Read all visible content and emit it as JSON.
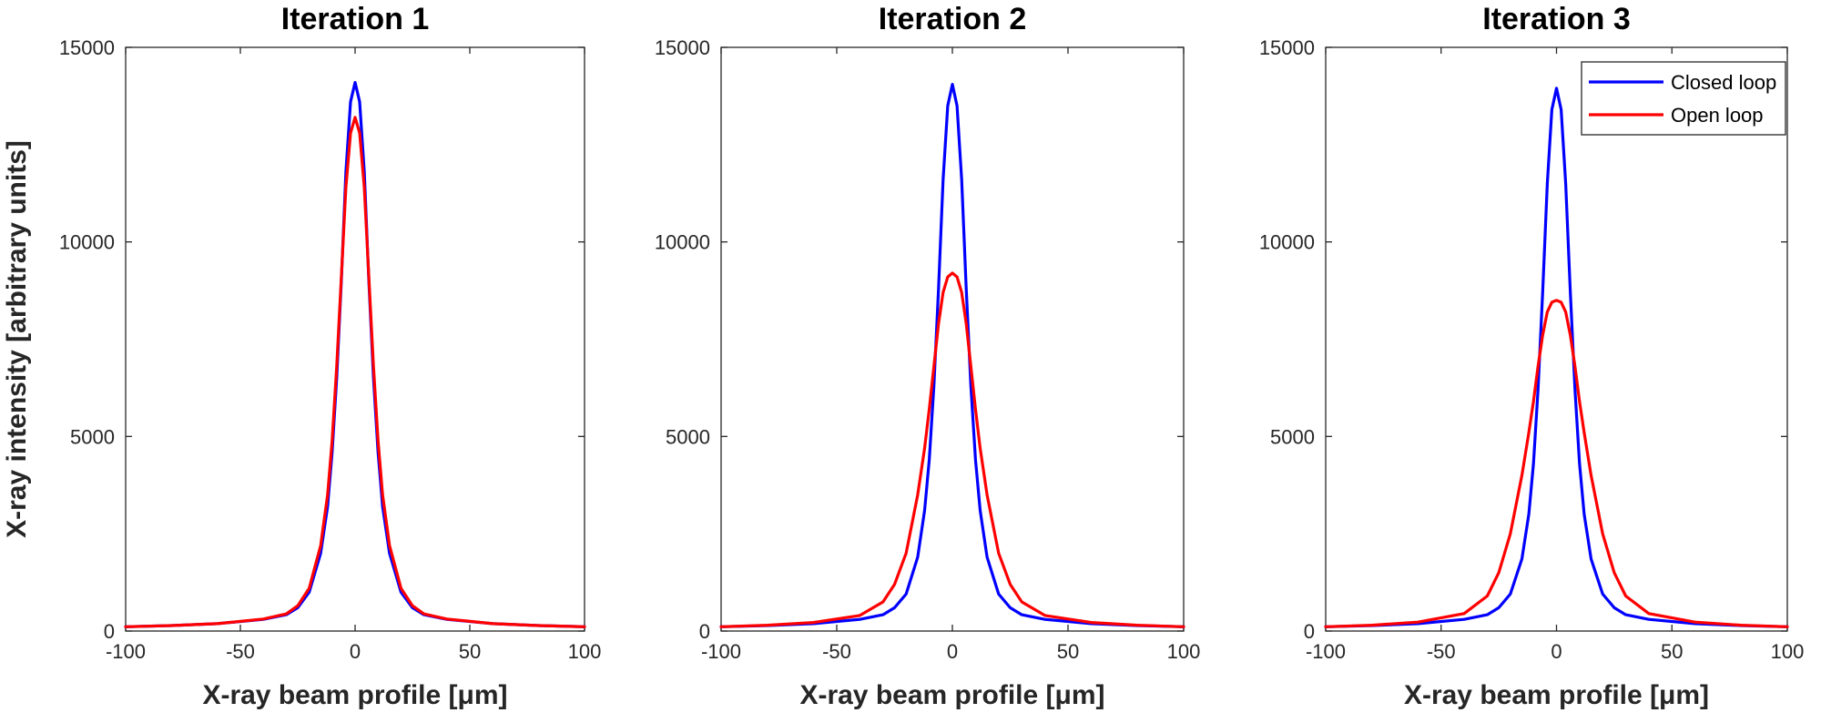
{
  "chart_data": [
    {
      "type": "line",
      "title": "Iteration 1",
      "xlabel": "X-ray beam profile [μm]",
      "ylabel": "X-ray intensity [arbitrary units]",
      "xlim": [
        -100,
        100
      ],
      "ylim": [
        0,
        15000
      ],
      "xticks": [
        -100,
        -50,
        0,
        50,
        100
      ],
      "yticks": [
        0,
        5000,
        10000,
        15000
      ],
      "legend": false,
      "series": [
        {
          "name": "Closed loop",
          "color": "#0000ff",
          "x": [
            -100,
            -80,
            -60,
            -40,
            -30,
            -25,
            -20,
            -15,
            -12,
            -10,
            -8,
            -6,
            -4,
            -2,
            0,
            2,
            4,
            6,
            8,
            10,
            12,
            15,
            20,
            25,
            30,
            40,
            60,
            80,
            100
          ],
          "y": [
            110,
            140,
            190,
            300,
            420,
            600,
            1000,
            2000,
            3200,
            4600,
            6500,
            9000,
            11800,
            13600,
            14100,
            13600,
            11800,
            9000,
            6500,
            4600,
            3200,
            2000,
            1000,
            600,
            420,
            300,
            190,
            140,
            110
          ]
        },
        {
          "name": "Open loop",
          "color": "#ff0000",
          "x": [
            -100,
            -80,
            -60,
            -40,
            -30,
            -25,
            -20,
            -15,
            -12,
            -10,
            -8,
            -6,
            -4,
            -2,
            0,
            2,
            4,
            6,
            8,
            10,
            12,
            15,
            20,
            25,
            30,
            40,
            60,
            80,
            100
          ],
          "y": [
            110,
            140,
            190,
            310,
            440,
            650,
            1100,
            2200,
            3500,
            4900,
            6800,
            9100,
            11400,
            12800,
            13200,
            12800,
            11400,
            9100,
            6800,
            4900,
            3500,
            2200,
            1100,
            650,
            440,
            310,
            190,
            140,
            110
          ]
        }
      ]
    },
    {
      "type": "line",
      "title": "Iteration 2",
      "xlabel": "X-ray beam profile [μm]",
      "ylabel": "",
      "xlim": [
        -100,
        100
      ],
      "ylim": [
        0,
        15000
      ],
      "xticks": [
        -100,
        -50,
        0,
        50,
        100
      ],
      "yticks": [
        0,
        5000,
        10000,
        15000
      ],
      "legend": false,
      "series": [
        {
          "name": "Closed loop",
          "color": "#0000ff",
          "x": [
            -100,
            -80,
            -60,
            -40,
            -30,
            -25,
            -20,
            -15,
            -12,
            -10,
            -8,
            -6,
            -4,
            -2,
            0,
            2,
            4,
            6,
            8,
            10,
            12,
            15,
            20,
            25,
            30,
            40,
            60,
            80,
            100
          ],
          "y": [
            110,
            140,
            190,
            300,
            420,
            600,
            950,
            1900,
            3100,
            4400,
            6300,
            8800,
            11600,
            13500,
            14050,
            13500,
            11600,
            8800,
            6300,
            4400,
            3100,
            1900,
            950,
            600,
            420,
            300,
            190,
            140,
            110
          ]
        },
        {
          "name": "Open loop",
          "color": "#ff0000",
          "x": [
            -100,
            -80,
            -60,
            -40,
            -30,
            -25,
            -20,
            -15,
            -12,
            -10,
            -8,
            -6,
            -4,
            -2,
            0,
            2,
            4,
            6,
            8,
            10,
            12,
            15,
            20,
            25,
            30,
            40,
            60,
            80,
            100
          ],
          "y": [
            110,
            150,
            220,
            400,
            750,
            1200,
            2000,
            3500,
            4700,
            5700,
            6800,
            7900,
            8700,
            9100,
            9200,
            9100,
            8700,
            7900,
            6800,
            5700,
            4700,
            3500,
            2000,
            1200,
            750,
            400,
            220,
            150,
            110
          ]
        }
      ]
    },
    {
      "type": "line",
      "title": "Iteration 3",
      "xlabel": "X-ray beam profile [μm]",
      "ylabel": "",
      "xlim": [
        -100,
        100
      ],
      "ylim": [
        0,
        15000
      ],
      "xticks": [
        -100,
        -50,
        0,
        50,
        100
      ],
      "yticks": [
        0,
        5000,
        10000,
        15000
      ],
      "legend": true,
      "legend_position": "top-right",
      "series": [
        {
          "name": "Closed loop",
          "color": "#0000ff",
          "x": [
            -100,
            -80,
            -60,
            -40,
            -30,
            -25,
            -20,
            -15,
            -12,
            -10,
            -8,
            -6,
            -4,
            -2,
            0,
            2,
            4,
            6,
            8,
            10,
            12,
            15,
            20,
            25,
            30,
            40,
            60,
            80,
            100
          ],
          "y": [
            110,
            140,
            190,
            300,
            420,
            600,
            950,
            1850,
            3000,
            4300,
            6200,
            8700,
            11500,
            13400,
            13950,
            13400,
            11500,
            8700,
            6200,
            4300,
            3000,
            1850,
            950,
            600,
            420,
            300,
            190,
            140,
            110
          ]
        },
        {
          "name": "Open loop",
          "color": "#ff0000",
          "x": [
            -100,
            -80,
            -60,
            -40,
            -30,
            -25,
            -20,
            -15,
            -12,
            -10,
            -8,
            -6,
            -4,
            -2,
            0,
            2,
            4,
            6,
            8,
            10,
            12,
            15,
            20,
            25,
            30,
            40,
            60,
            80,
            100
          ],
          "y": [
            110,
            150,
            230,
            450,
            900,
            1500,
            2500,
            4000,
            5100,
            5900,
            6800,
            7600,
            8200,
            8450,
            8500,
            8450,
            8200,
            7600,
            6800,
            5900,
            5100,
            4000,
            2500,
            1500,
            900,
            450,
            230,
            150,
            110
          ]
        }
      ]
    }
  ]
}
